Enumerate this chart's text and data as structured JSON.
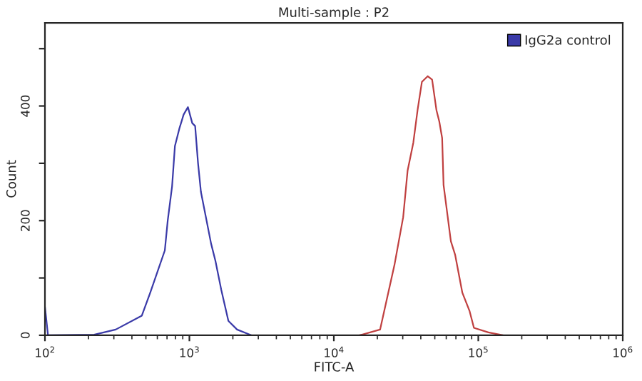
{
  "chart_data": {
    "type": "line",
    "title": "Multi-sample : P2",
    "xlabel": "FITC-A",
    "ylabel": "Count",
    "log": "x",
    "xlim": [
      100,
      1000000
    ],
    "xticks": [
      {
        "value": 100,
        "label": "10$^{2}$"
      },
      {
        "value": 1000,
        "label": "10$^{3}$"
      },
      {
        "value": 10000,
        "label": "10$^{4}$"
      },
      {
        "value": 100000,
        "label": "10$^{5}$"
      },
      {
        "value": 1000000,
        "label": "10$^{6}$"
      }
    ],
    "ylim": [
      0,
      545
    ],
    "yticks": [
      0,
      {
        "value": 100,
        "label": null
      },
      200,
      {
        "value": 300,
        "label": null
      },
      400,
      {
        "value": 500,
        "label": null
      }
    ],
    "grid": false,
    "legend": "top right",
    "marker": "none",
    "line_style": "solid",
    "series": [
      {
        "name": "IgG2a control",
        "color": "#3a3aa8",
        "x": [
          100,
          105,
          219,
          309,
          468,
          537,
          676,
          708,
          759,
          794,
          851,
          912,
          977,
          1047,
          1096,
          1148,
          1202,
          1413,
          1514,
          1660,
          1862,
          2138,
          2692
        ],
        "values": [
          50,
          0,
          1,
          10,
          34,
          75,
          148,
          200,
          260,
          330,
          360,
          385,
          398,
          370,
          365,
          300,
          250,
          160,
          130,
          80,
          25,
          10,
          0
        ]
      },
      {
        "color": "#c04040",
        "x": [
          15100,
          20900,
          26300,
          30200,
          32400,
          35500,
          38000,
          40700,
          44700,
          47900,
          51300,
          53700,
          56200,
          57500,
          64600,
          69200,
          77600,
          87100,
          93300,
          117500,
          147900
        ],
        "values": [
          0,
          10,
          123,
          206,
          287,
          336,
          393,
          442,
          452,
          446,
          393,
          373,
          344,
          262,
          164,
          140,
          74,
          42,
          13,
          5,
          0
        ]
      }
    ]
  }
}
